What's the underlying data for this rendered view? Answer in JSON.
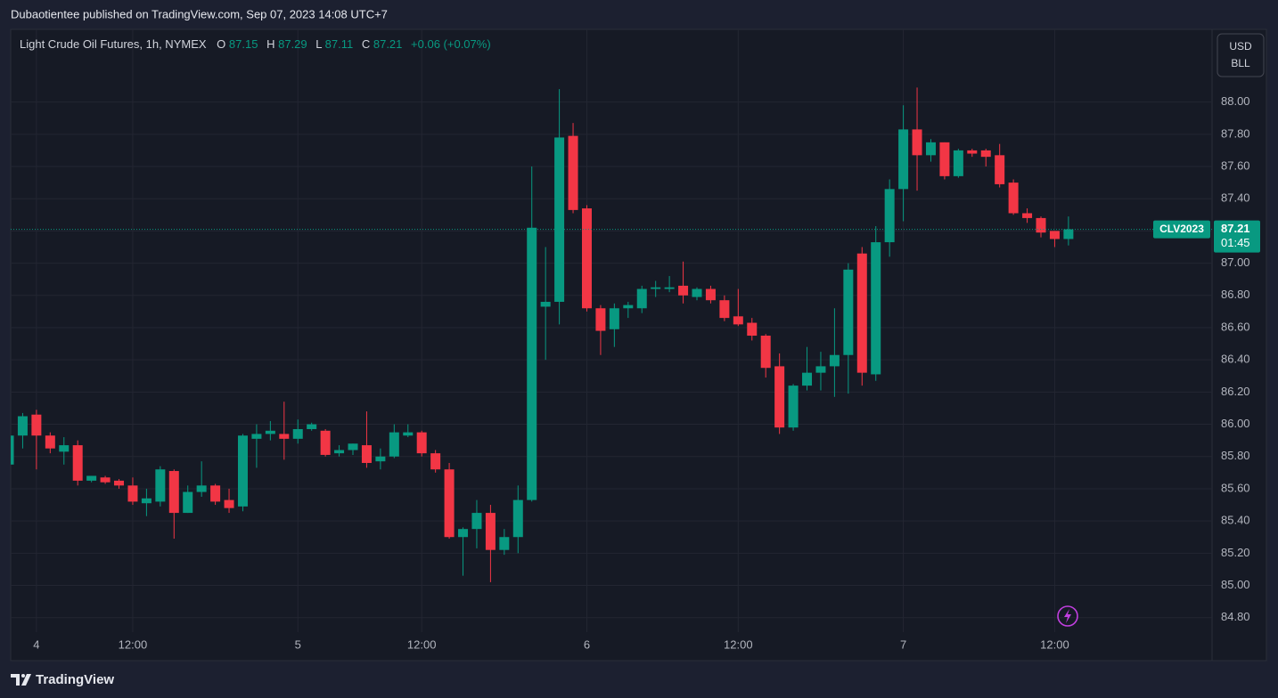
{
  "header": {
    "text": "Dubaotientee published on TradingView.com, Sep 07, 2023 14:08 UTC+7"
  },
  "footer": {
    "brand": "TradingView"
  },
  "chart_data": {
    "type": "candlestick",
    "title": "Light Crude Oil Futures, 1h, NYMEX",
    "ohlc_labels": [
      "O",
      "H",
      "L",
      "C"
    ],
    "change": "+0.06 (+0.07%)",
    "symbol": "CLV2023",
    "countdown": "01:45",
    "currency": "USD",
    "unit": "BLL",
    "up_color": "#089981",
    "down_color": "#f23645",
    "grid": true,
    "categories": [
      null,
      null,
      "4",
      null,
      null,
      null,
      null,
      null,
      null,
      "12:00",
      null,
      null,
      null,
      null,
      null,
      null,
      null,
      null,
      null,
      null,
      null,
      "5",
      null,
      null,
      null,
      null,
      null,
      null,
      null,
      null,
      "12:00",
      null,
      null,
      null,
      null,
      null,
      null,
      null,
      null,
      null,
      null,
      null,
      "6",
      null,
      null,
      null,
      null,
      null,
      null,
      null,
      null,
      null,
      null,
      "12:00",
      null,
      null,
      null,
      null,
      null,
      null,
      null,
      null,
      null,
      null,
      null,
      "7",
      null,
      null,
      null,
      null,
      null,
      null,
      null,
      null,
      null,
      null,
      "12:00",
      null
    ],
    "open": [
      85.75,
      85.93,
      86.06,
      85.93,
      85.83,
      85.87,
      85.65,
      85.67,
      85.65,
      85.62,
      85.51,
      85.52,
      85.71,
      85.45,
      85.58,
      85.62,
      85.53,
      85.49,
      85.91,
      85.94,
      85.94,
      85.91,
      85.97,
      85.96,
      85.82,
      85.84,
      85.87,
      85.77,
      85.8,
      85.93,
      85.95,
      85.82,
      85.72,
      85.3,
      85.35,
      85.45,
      85.22,
      85.3,
      85.53,
      86.73,
      86.76,
      87.79,
      87.34,
      86.72,
      86.59,
      86.72,
      86.72,
      86.84,
      86.84,
      86.86,
      86.79,
      86.84,
      86.77,
      86.67,
      86.63,
      86.55,
      86.36,
      85.98,
      86.24,
      86.32,
      86.36,
      86.43,
      87.06,
      86.31,
      87.13,
      87.46,
      87.83,
      87.67,
      87.75,
      87.54,
      87.7,
      87.7,
      87.67,
      87.5,
      87.31,
      87.28,
      87.2,
      87.15
    ],
    "high": [
      85.95,
      86.07,
      86.09,
      85.95,
      85.92,
      85.9,
      85.68,
      85.68,
      85.66,
      85.67,
      85.6,
      85.74,
      85.72,
      85.62,
      85.77,
      85.63,
      85.6,
      85.94,
      86.0,
      86.02,
      86.14,
      86.03,
      86.01,
      85.97,
      85.87,
      85.88,
      86.08,
      85.85,
      86.0,
      86.0,
      85.96,
      85.84,
      85.76,
      85.36,
      85.53,
      85.5,
      85.35,
      85.62,
      87.6,
      87.1,
      88.08,
      87.87,
      87.36,
      86.74,
      86.75,
      86.76,
      86.86,
      86.89,
      86.92,
      87.01,
      86.85,
      86.86,
      86.8,
      86.84,
      86.66,
      86.56,
      86.44,
      86.25,
      86.48,
      86.45,
      86.72,
      87.0,
      87.1,
      87.23,
      87.52,
      87.98,
      88.09,
      87.77,
      87.75,
      87.71,
      87.71,
      87.71,
      87.74,
      87.52,
      87.34,
      87.29,
      87.2,
      87.29
    ],
    "low": [
      85.72,
      85.85,
      85.72,
      85.82,
      85.75,
      85.62,
      85.64,
      85.63,
      85.6,
      85.5,
      85.43,
      85.49,
      85.29,
      85.45,
      85.55,
      85.5,
      85.45,
      85.46,
      85.73,
      85.9,
      85.78,
      85.88,
      85.96,
      85.8,
      85.8,
      85.81,
      85.73,
      85.72,
      85.79,
      85.92,
      85.8,
      85.7,
      85.29,
      85.06,
      85.23,
      85.02,
      85.19,
      85.2,
      85.52,
      86.4,
      86.62,
      87.31,
      86.7,
      86.43,
      86.48,
      86.66,
      86.69,
      86.79,
      86.82,
      86.75,
      86.77,
      86.75,
      86.64,
      86.61,
      86.52,
      86.29,
      85.94,
      85.96,
      86.21,
      86.21,
      86.17,
      86.19,
      86.24,
      86.27,
      87.04,
      87.26,
      87.45,
      87.63,
      87.52,
      87.53,
      87.66,
      87.6,
      87.47,
      87.3,
      87.25,
      87.16,
      87.1,
      87.11
    ],
    "close": [
      85.93,
      86.05,
      85.93,
      85.85,
      85.87,
      85.65,
      85.68,
      85.64,
      85.62,
      85.52,
      85.54,
      85.72,
      85.45,
      85.58,
      85.62,
      85.52,
      85.48,
      85.93,
      85.94,
      85.96,
      85.91,
      85.97,
      86.0,
      85.81,
      85.84,
      85.88,
      85.76,
      85.8,
      85.95,
      85.95,
      85.82,
      85.72,
      85.3,
      85.35,
      85.45,
      85.22,
      85.3,
      85.53,
      87.22,
      86.76,
      87.78,
      87.33,
      86.72,
      86.58,
      86.72,
      86.74,
      86.84,
      86.85,
      86.85,
      86.8,
      86.84,
      86.77,
      86.66,
      86.62,
      86.55,
      86.35,
      85.98,
      86.24,
      86.32,
      86.36,
      86.43,
      86.96,
      86.32,
      87.13,
      87.46,
      87.83,
      87.67,
      87.75,
      87.54,
      87.7,
      87.68,
      87.66,
      87.49,
      87.31,
      87.28,
      87.19,
      87.15,
      87.21
    ],
    "ylim": [
      84.71,
      88.44
    ],
    "yticks": [
      {
        "value": 84.8,
        "label": "84.80"
      },
      {
        "value": 85.0,
        "label": "85.00"
      },
      {
        "value": 85.2,
        "label": "85.20"
      },
      {
        "value": 85.4,
        "label": "85.40"
      },
      {
        "value": 85.6,
        "label": "85.60"
      },
      {
        "value": 85.8,
        "label": "85.80"
      },
      {
        "value": 86.0,
        "label": "86.00"
      },
      {
        "value": 86.2,
        "label": "86.20"
      },
      {
        "value": 86.4,
        "label": "86.40"
      },
      {
        "value": 86.6,
        "label": "86.60"
      },
      {
        "value": 86.8,
        "label": "86.80"
      },
      {
        "value": 87.0,
        "label": "87.00"
      },
      {
        "value": 87.2,
        "label": "87.20"
      },
      {
        "value": 87.4,
        "label": "87.40"
      },
      {
        "value": 87.6,
        "label": "87.60"
      },
      {
        "value": 87.8,
        "label": "87.80"
      },
      {
        "value": 88.0,
        "label": "88.00"
      }
    ]
  }
}
